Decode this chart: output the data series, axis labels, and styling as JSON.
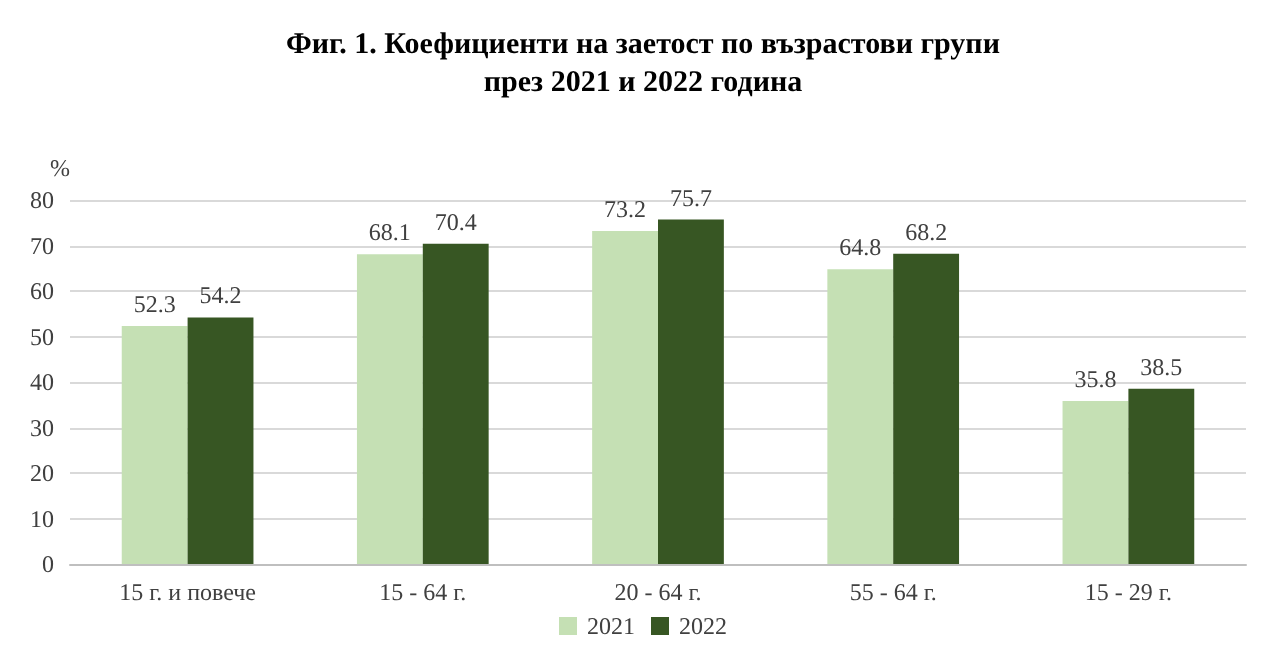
{
  "chart_data": {
    "type": "bar",
    "title": "Фиг. 1. Коефициенти на заетост по възрастови групи\nпрез 2021 и 2022 година",
    "ylabel": "%",
    "categories": [
      "15 г. и повече",
      "15 - 64 г.",
      "20 - 64 г.",
      "55 - 64 г.",
      "15 - 29 г."
    ],
    "series": [
      {
        "name": "2021",
        "color": "#c5e0b4",
        "values": [
          52.3,
          68.1,
          73.2,
          64.8,
          35.8
        ]
      },
      {
        "name": "2022",
        "color": "#375623",
        "values": [
          54.2,
          70.4,
          75.7,
          68.2,
          38.5
        ]
      }
    ],
    "ylim": [
      0,
      80
    ],
    "yticks": [
      0,
      10,
      20,
      30,
      40,
      50,
      60,
      70,
      80
    ],
    "grid": "y",
    "legend": "bottom",
    "data_labels": true
  }
}
